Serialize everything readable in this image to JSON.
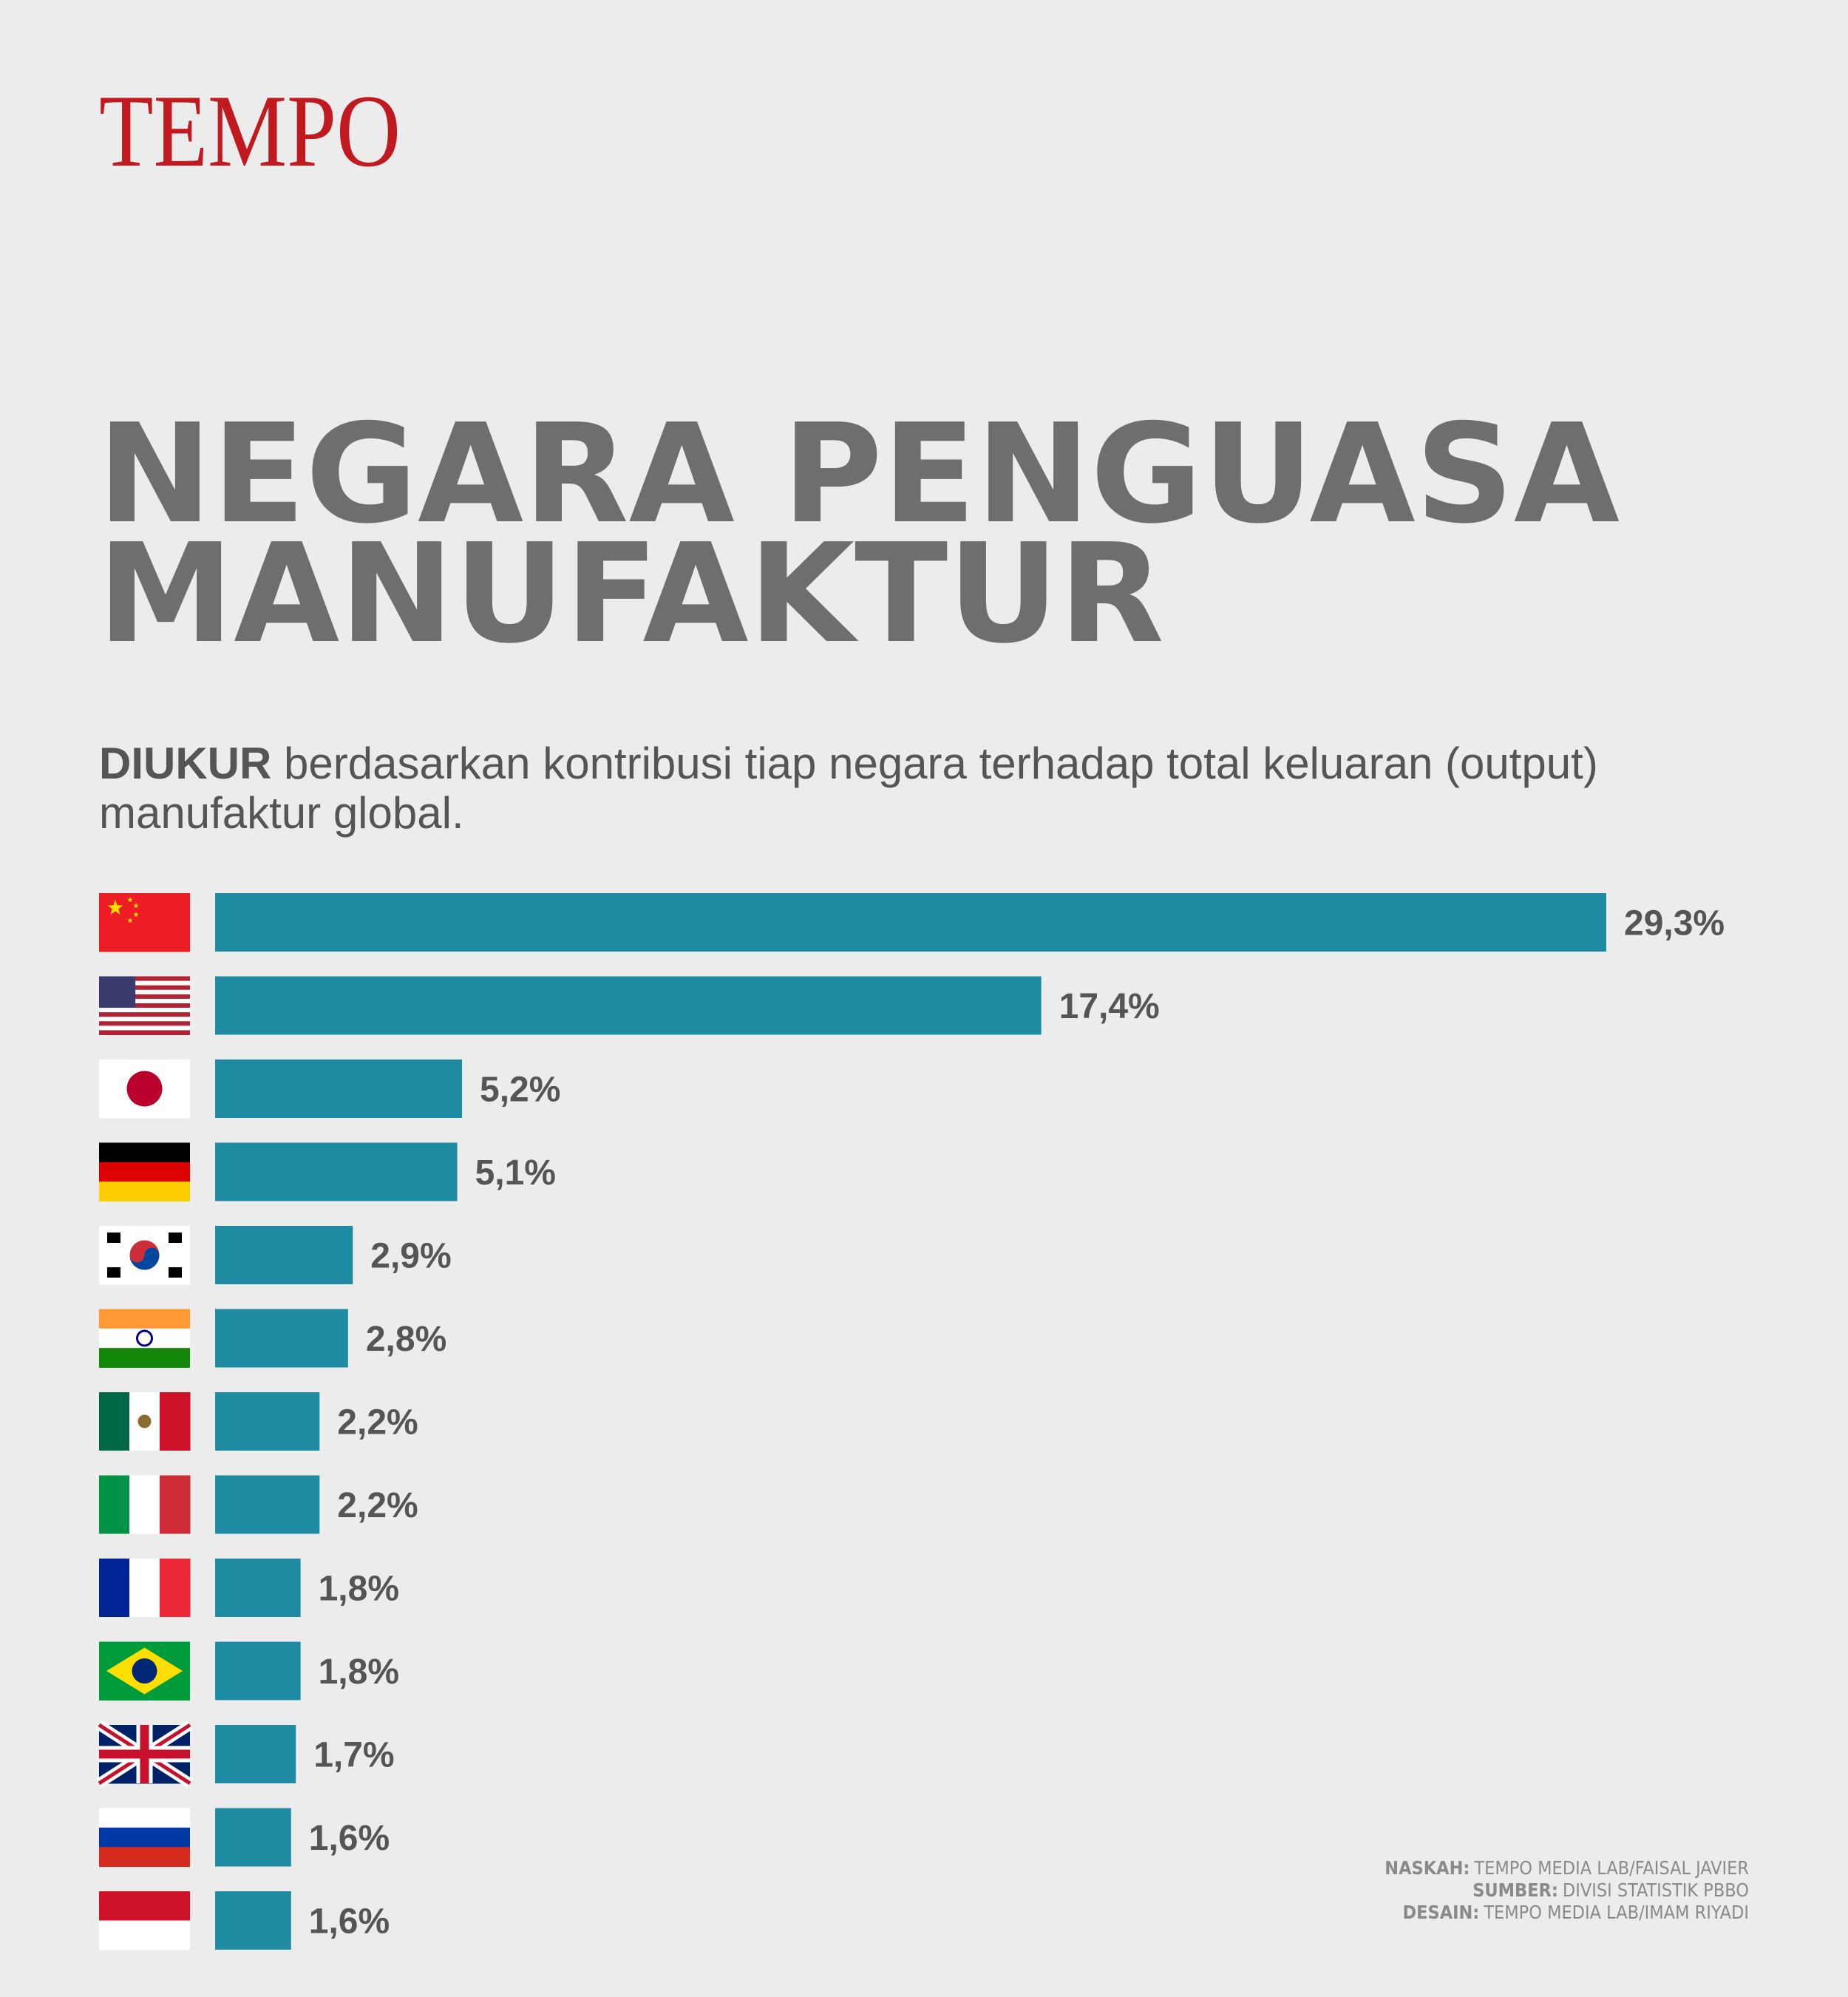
{
  "logo": "TEMPO",
  "chart_data": {
    "type": "bar",
    "title": "NEGARA PENGUASA MANUFAKTUR",
    "subtitle_lead": "DIUKUR",
    "subtitle": "berdasarkan kontribusi tiap negara terhadap total keluaran (output) manufaktur global.",
    "categories": [
      null,
      null,
      null,
      null,
      null,
      null,
      null,
      null,
      null,
      null,
      null,
      null,
      null
    ],
    "values": [
      29.3,
      17.4,
      5.2,
      5.1,
      2.9,
      2.8,
      2.2,
      2.2,
      1.8,
      1.8,
      1.7,
      1.6,
      1.6
    ],
    "value_labels": [
      "29,3%",
      "17,4%",
      "5,2%",
      "5,1%",
      "2,9%",
      "2,8%",
      "2,2%",
      "2,2%",
      "1,8%",
      "1,8%",
      "1,7%",
      "1,6%",
      "1,6%"
    ],
    "color": "#1f8ba2",
    "orientation": "horizontal"
  },
  "credits": [
    {
      "label": "NASKAH:",
      "text": "TEMPO MEDIA LAB/FAISAL JAVIER"
    },
    {
      "label": "SUMBER:",
      "text": "DIVISI STATISTIK PBBO"
    },
    {
      "label": "DESAIN:",
      "text": "TEMPO MEDIA LAB/IMAM RIYADI"
    }
  ]
}
